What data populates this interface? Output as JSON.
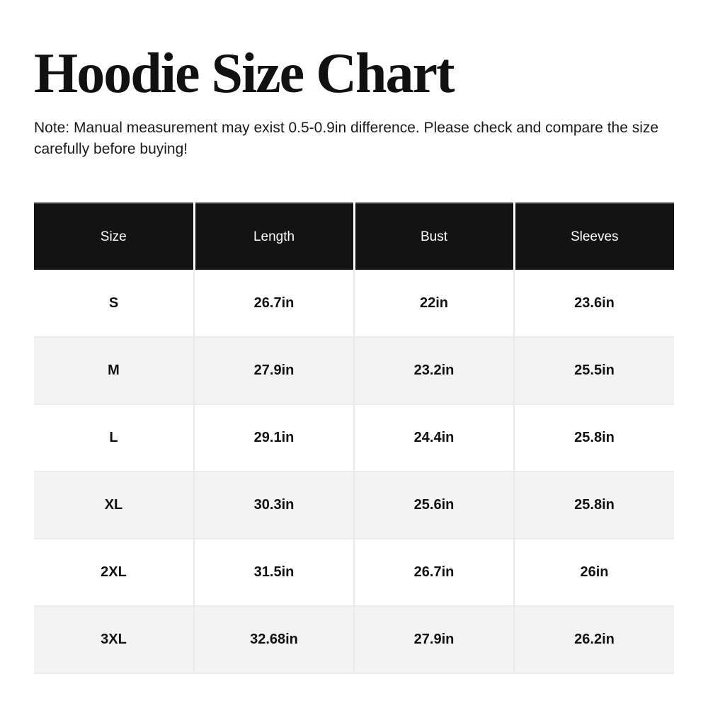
{
  "page": {
    "title": "Hoodie Size Chart",
    "note": "Note: Manual measurement may exist 0.5-0.9in difference. Please check and compare the size carefully before buying!"
  },
  "table": {
    "headers": [
      "Size",
      "Length",
      "Bust",
      "Sleeves"
    ],
    "rows": [
      [
        "S",
        "26.7in",
        "22in",
        "23.6in"
      ],
      [
        "M",
        "27.9in",
        "23.2in",
        "25.5in"
      ],
      [
        "L",
        "29.1in",
        "24.4in",
        "25.8in"
      ],
      [
        "XL",
        "30.3in",
        "25.6in",
        "25.8in"
      ],
      [
        "2XL",
        "31.5in",
        "26.7in",
        "26in"
      ],
      [
        "3XL",
        "32.68in",
        "27.9in",
        "26.2in"
      ]
    ]
  },
  "colors": {
    "header_bg": "#131313",
    "header_text": "#ffffff",
    "row_bg": "#ffffff",
    "row_alt_bg": "#f3f3f3",
    "body_text": "#111111",
    "divider": "#e9e9e9"
  }
}
